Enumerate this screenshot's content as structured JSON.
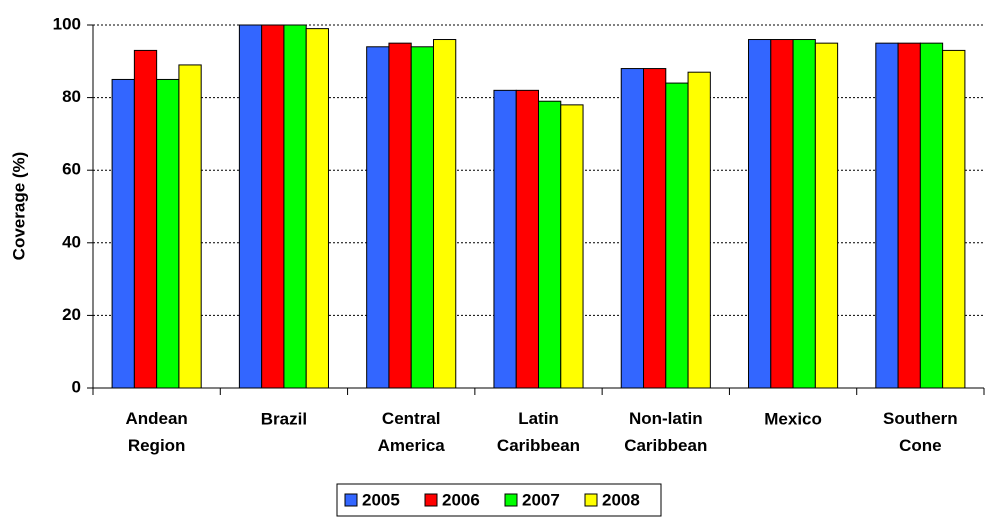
{
  "chart_data": {
    "type": "bar",
    "y_label": "Coverage (%)",
    "categories": [
      "Andean Region",
      "Brazil",
      "Central America",
      "Latin Caribbean",
      "Non-latin Caribbean",
      "Mexico",
      "Southern Cone"
    ],
    "series": [
      {
        "name": "2005",
        "color": "#3366ff",
        "values": [
          85,
          100,
          94,
          82,
          88,
          96,
          95
        ]
      },
      {
        "name": "2006",
        "color": "#ff0000",
        "values": [
          93,
          100,
          95,
          82,
          88,
          96,
          95
        ]
      },
      {
        "name": "2007",
        "color": "#00ff00",
        "values": [
          85,
          100,
          94,
          79,
          84,
          96,
          95
        ]
      },
      {
        "name": "2008",
        "color": "#ffff00",
        "values": [
          89,
          99,
          96,
          78,
          87,
          95,
          93
        ]
      }
    ],
    "ylim": [
      0,
      100
    ],
    "yticks": [
      0,
      20,
      40,
      60,
      80,
      100
    ],
    "grid": true
  }
}
